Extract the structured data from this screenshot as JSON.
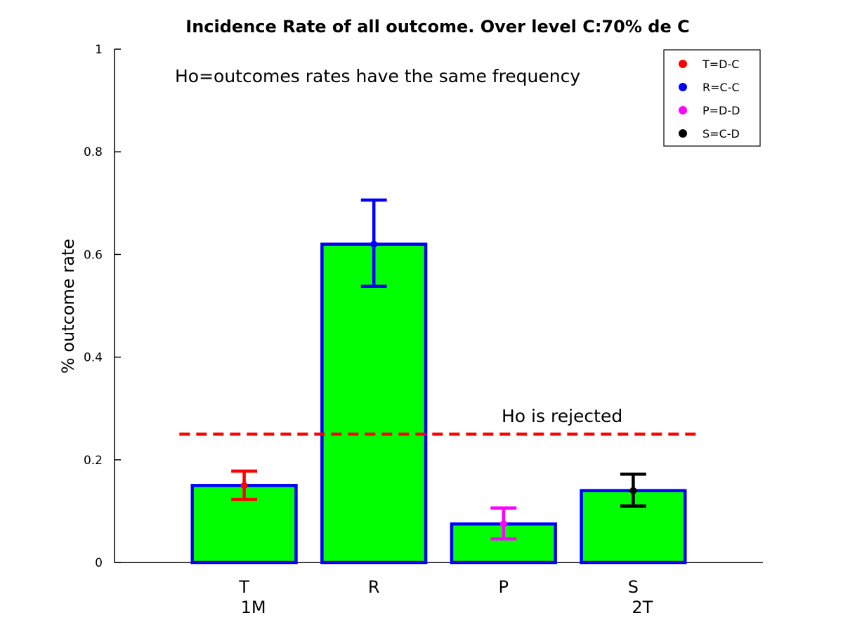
{
  "chart_data": {
    "type": "bar",
    "title": "Incidence Rate of all outcome. Over level C:70% de C",
    "xlabel": "",
    "ylabel": "% outcome rate",
    "ylim": [
      0,
      1
    ],
    "yticks": [
      0,
      0.2,
      0.4,
      0.6,
      0.8,
      1
    ],
    "ytick_labels": [
      "0",
      "0.2",
      "0.4",
      "0.6",
      "0.8",
      "1"
    ],
    "grid": false,
    "categories": [
      "T",
      "R",
      "P",
      "S"
    ],
    "sublabels": [
      "1M",
      "",
      "",
      "2T"
    ],
    "values": [
      0.15,
      0.62,
      0.075,
      0.14
    ],
    "error_low": [
      0.123,
      0.538,
      0.046,
      0.11
    ],
    "error_high": [
      0.178,
      0.706,
      0.106,
      0.172
    ],
    "bar_fill": "#00ff00",
    "bar_edge": "#0000ff",
    "error_colors": [
      "#ff0000",
      "#0000ff",
      "#ff00ff",
      "#000000"
    ],
    "reference_line": {
      "y": 0.25,
      "color": "#ff0000",
      "style": "dashed"
    },
    "annotations": [
      {
        "text": "Ho=outcomes rates have the same frequency"
      },
      {
        "text": "Ho is rejected"
      }
    ],
    "legend": {
      "position": "top-right",
      "entries": [
        {
          "label": "T=D-C",
          "color": "#ff0000"
        },
        {
          "label": "R=C-C",
          "color": "#0000ff"
        },
        {
          "label": "P=D-D",
          "color": "#ff00ff"
        },
        {
          "label": "S=C-D",
          "color": "#000000"
        }
      ]
    }
  }
}
